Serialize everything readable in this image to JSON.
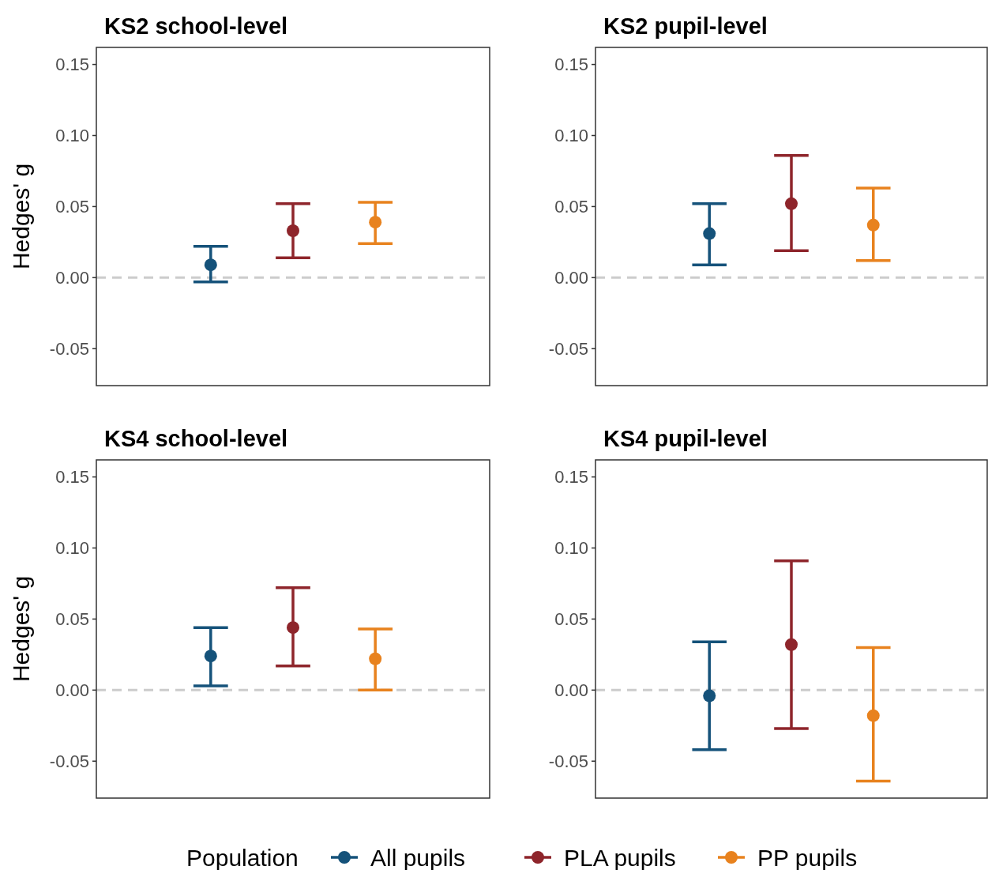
{
  "chart_data": [
    {
      "type": "scatter",
      "title": "KS2 school-level",
      "ylabel": "Hedges' g",
      "categories": [
        null,
        null,
        null
      ],
      "ylim": [
        -0.076,
        0.162
      ],
      "yticks": [
        {
          "value": -0.05,
          "label": "-0.05"
        },
        {
          "value": 0,
          "label": "0.00"
        },
        {
          "value": 0.05,
          "label": "0.05"
        },
        {
          "value": 0.1,
          "label": "0.10"
        },
        {
          "value": 0.15,
          "label": "0.15"
        }
      ],
      "tick_labels": "y",
      "marker": "circle",
      "legend": "bottom",
      "legend_title": "Population",
      "ref_lines": [
        {
          "axis": "y",
          "value": 0,
          "color": "#cccccc",
          "line_style": "dashed"
        }
      ],
      "series": [
        {
          "name": "All pupils",
          "color": "#15527a",
          "values": [
            0.009,
            null,
            null
          ],
          "errors": [
            [
              -0.003,
              0.022
            ],
            null,
            null
          ]
        },
        {
          "name": "PLA pupils",
          "color": "#8e252b",
          "values": [
            null,
            0.033,
            null
          ],
          "errors": [
            null,
            [
              0.014,
              0.052
            ],
            null
          ]
        },
        {
          "name": "PP pupils",
          "color": "#e8821e",
          "values": [
            null,
            null,
            0.039
          ],
          "errors": [
            null,
            null,
            [
              0.024,
              0.053
            ]
          ]
        }
      ]
    },
    {
      "type": "scatter",
      "title": "KS2 pupil-level",
      "categories": [
        null,
        null,
        null
      ],
      "ylim": [
        -0.076,
        0.162
      ],
      "yticks": [
        {
          "value": -0.05,
          "label": "-0.05"
        },
        {
          "value": 0,
          "label": "0.00"
        },
        {
          "value": 0.05,
          "label": "0.05"
        },
        {
          "value": 0.1,
          "label": "0.10"
        },
        {
          "value": 0.15,
          "label": "0.15"
        }
      ],
      "tick_labels": "y",
      "marker": "circle",
      "ref_lines": [
        {
          "axis": "y",
          "value": 0,
          "color": "#cccccc",
          "line_style": "dashed"
        }
      ],
      "series": [
        {
          "color": "#15527a",
          "values": [
            0.031,
            null,
            null
          ],
          "errors": [
            [
              0.009,
              0.052
            ],
            null,
            null
          ]
        },
        {
          "color": "#8e252b",
          "values": [
            null,
            0.052,
            null
          ],
          "errors": [
            null,
            [
              0.019,
              0.086
            ],
            null
          ]
        },
        {
          "color": "#e8821e",
          "values": [
            null,
            null,
            0.037
          ],
          "errors": [
            null,
            null,
            [
              0.012,
              0.063
            ]
          ]
        }
      ]
    },
    {
      "type": "scatter",
      "title": "KS4 school-level",
      "ylabel": "Hedges' g",
      "categories": [
        null,
        null,
        null
      ],
      "ylim": [
        -0.076,
        0.162
      ],
      "yticks": [
        {
          "value": -0.05,
          "label": "-0.05"
        },
        {
          "value": 0,
          "label": "0.00"
        },
        {
          "value": 0.05,
          "label": "0.05"
        },
        {
          "value": 0.1,
          "label": "0.10"
        },
        {
          "value": 0.15,
          "label": "0.15"
        }
      ],
      "tick_labels": "y",
      "marker": "circle",
      "ref_lines": [
        {
          "axis": "y",
          "value": 0,
          "color": "#cccccc",
          "line_style": "dashed"
        }
      ],
      "series": [
        {
          "color": "#15527a",
          "values": [
            0.024,
            null,
            null
          ],
          "errors": [
            [
              0.003,
              0.044
            ],
            null,
            null
          ]
        },
        {
          "color": "#8e252b",
          "values": [
            null,
            0.044,
            null
          ],
          "errors": [
            null,
            [
              0.017,
              0.072
            ],
            null
          ]
        },
        {
          "color": "#e8821e",
          "values": [
            null,
            null,
            0.022
          ],
          "errors": [
            null,
            null,
            [
              0.0,
              0.043
            ]
          ]
        }
      ]
    },
    {
      "type": "scatter",
      "title": "KS4 pupil-level",
      "categories": [
        null,
        null,
        null
      ],
      "ylim": [
        -0.076,
        0.162
      ],
      "yticks": [
        {
          "value": -0.05,
          "label": "-0.05"
        },
        {
          "value": 0,
          "label": "0.00"
        },
        {
          "value": 0.05,
          "label": "0.05"
        },
        {
          "value": 0.1,
          "label": "0.10"
        },
        {
          "value": 0.15,
          "label": "0.15"
        }
      ],
      "tick_labels": "y",
      "marker": "circle",
      "ref_lines": [
        {
          "axis": "y",
          "value": 0,
          "color": "#cccccc",
          "line_style": "dashed"
        }
      ],
      "series": [
        {
          "color": "#15527a",
          "values": [
            -0.004,
            null,
            null
          ],
          "errors": [
            [
              -0.042,
              0.034
            ],
            null,
            null
          ]
        },
        {
          "color": "#8e252b",
          "values": [
            null,
            0.032,
            null
          ],
          "errors": [
            null,
            [
              -0.027,
              0.091
            ],
            null
          ]
        },
        {
          "color": "#e8821e",
          "values": [
            null,
            null,
            -0.018
          ],
          "errors": [
            null,
            null,
            [
              -0.064,
              0.03
            ]
          ]
        }
      ]
    }
  ]
}
